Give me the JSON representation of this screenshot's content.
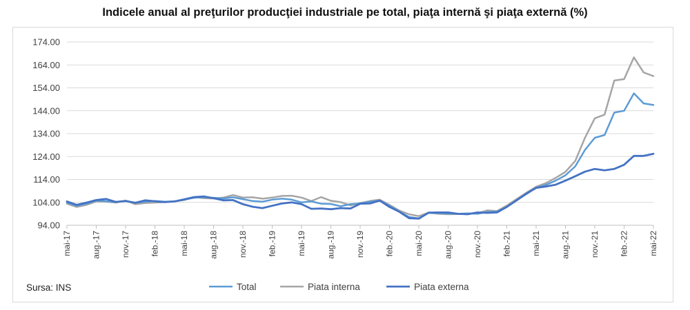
{
  "title": "Indicele anual al preţurilor producţiei industriale pe total, piaţa internă şi piaţa externă (%)",
  "source": "Sursa: INS",
  "chart_data": {
    "type": "line",
    "title": "Indicele anual al preţurilor producţiei industriale pe total, piaţa internă şi piaţa externă (%)",
    "xlabel": "",
    "ylabel": "",
    "ylim": [
      94,
      174
    ],
    "yticks": [
      94,
      104,
      114,
      124,
      134,
      144,
      154,
      164,
      174
    ],
    "ytick_labels": [
      "94.00",
      "104.00",
      "114.00",
      "124.00",
      "134.00",
      "144.00",
      "154.00",
      "164.00",
      "174.00"
    ],
    "grid": true,
    "legend_position": "bottom",
    "x": [
      "mai-17",
      "iun-17",
      "iul-17",
      "aug.-17",
      "sep.-17",
      "oct.-17",
      "nov.-17",
      "dec.-17",
      "ian.-18",
      "feb.-18",
      "mar.-18",
      "apr.-18",
      "mai-18",
      "iun-18",
      "iul-18",
      "aug.-18",
      "sep.-18",
      "oct.-18",
      "nov.-18",
      "dec.-18",
      "ian.-19",
      "feb.-19",
      "mar.-19",
      "apr.-19",
      "mai-19",
      "iun-19",
      "iul-19",
      "aug.-19",
      "sep.-19",
      "oct.-19",
      "nov.-19",
      "dec.-19",
      "ian.-20",
      "feb.-20",
      "mar.-20",
      "apr.-20",
      "mai-20",
      "iun-20",
      "iul-20",
      "aug.-20",
      "sep.-20",
      "oct.-20",
      "nov.-20",
      "dec.-20",
      "ian.-21",
      "feb.-21",
      "mar.-21",
      "apr.-21",
      "mai-21",
      "iun-21",
      "iul-21",
      "aug.-21",
      "sep.-21",
      "oct.-21",
      "nov.-21",
      "dec.-21",
      "ian.-22",
      "feb.-22",
      "mar.-22",
      "apr.-22",
      "mai-22"
    ],
    "tick_indices": [
      0,
      3,
      6,
      9,
      12,
      15,
      18,
      21,
      24,
      27,
      30,
      33,
      36,
      39,
      42,
      45,
      48,
      51,
      54,
      57,
      60
    ],
    "series": [
      {
        "name": "Total",
        "color": "#5b9bd5",
        "width": 2.5,
        "values": [
          103.9,
          102.5,
          103.4,
          104.8,
          104.5,
          104.2,
          104.6,
          103.8,
          104.3,
          104.6,
          104.3,
          104.4,
          105.2,
          106.0,
          106.3,
          106.0,
          105.7,
          106.2,
          105.4,
          104.6,
          104.3,
          105.2,
          105.6,
          105.2,
          104.0,
          104.4,
          103.4,
          103.3,
          102.3,
          103.2,
          103.5,
          104.3,
          104.7,
          102.5,
          100.0,
          97.6,
          97.0,
          99.4,
          99.3,
          99.1,
          99.0,
          99.2,
          99.0,
          99.8,
          100.0,
          102.0,
          104.9,
          107.6,
          110.4,
          111.6,
          113.5,
          115.8,
          119.7,
          126.9,
          132.2,
          133.4,
          143.2,
          144.0,
          151.6,
          147.2,
          146.5
        ]
      },
      {
        "name": "Piata interna",
        "color": "#a5a5a5",
        "width": 2.5,
        "values": [
          103.4,
          102.0,
          102.9,
          104.4,
          104.3,
          103.9,
          104.8,
          103.2,
          103.7,
          103.9,
          104.1,
          104.5,
          105.0,
          106.3,
          105.8,
          105.7,
          106.1,
          107.2,
          106.1,
          106.2,
          105.6,
          106.1,
          106.8,
          106.9,
          106.1,
          104.6,
          106.3,
          104.7,
          104.1,
          102.7,
          103.7,
          104.6,
          105.2,
          102.9,
          100.4,
          98.8,
          98.0,
          99.5,
          99.0,
          98.8,
          98.9,
          99.1,
          99.3,
          100.5,
          100.2,
          102.6,
          105.4,
          108.2,
          110.8,
          112.4,
          114.7,
          117.3,
          122.1,
          132.2,
          140.7,
          142.3,
          157.2,
          157.8,
          167.3,
          160.7,
          159.1
        ]
      },
      {
        "name": "Piata externa",
        "color": "#4472c4",
        "width": 2.8,
        "values": [
          104.4,
          102.9,
          103.9,
          105.0,
          105.5,
          104.2,
          104.6,
          103.8,
          104.9,
          104.5,
          104.1,
          104.4,
          105.3,
          106.3,
          106.6,
          105.8,
          104.9,
          105.0,
          103.2,
          102.1,
          101.5,
          102.5,
          103.5,
          104.0,
          103.2,
          101.2,
          101.3,
          101.0,
          101.5,
          101.3,
          103.4,
          103.5,
          104.8,
          102.0,
          99.9,
          97.1,
          96.9,
          99.5,
          99.6,
          99.6,
          99.0,
          98.8,
          99.6,
          99.4,
          99.6,
          102.0,
          104.9,
          107.8,
          110.3,
          110.9,
          111.7,
          113.5,
          115.4,
          117.4,
          118.6,
          118.0,
          118.6,
          120.4,
          124.3,
          124.3,
          125.2
        ]
      }
    ]
  }
}
